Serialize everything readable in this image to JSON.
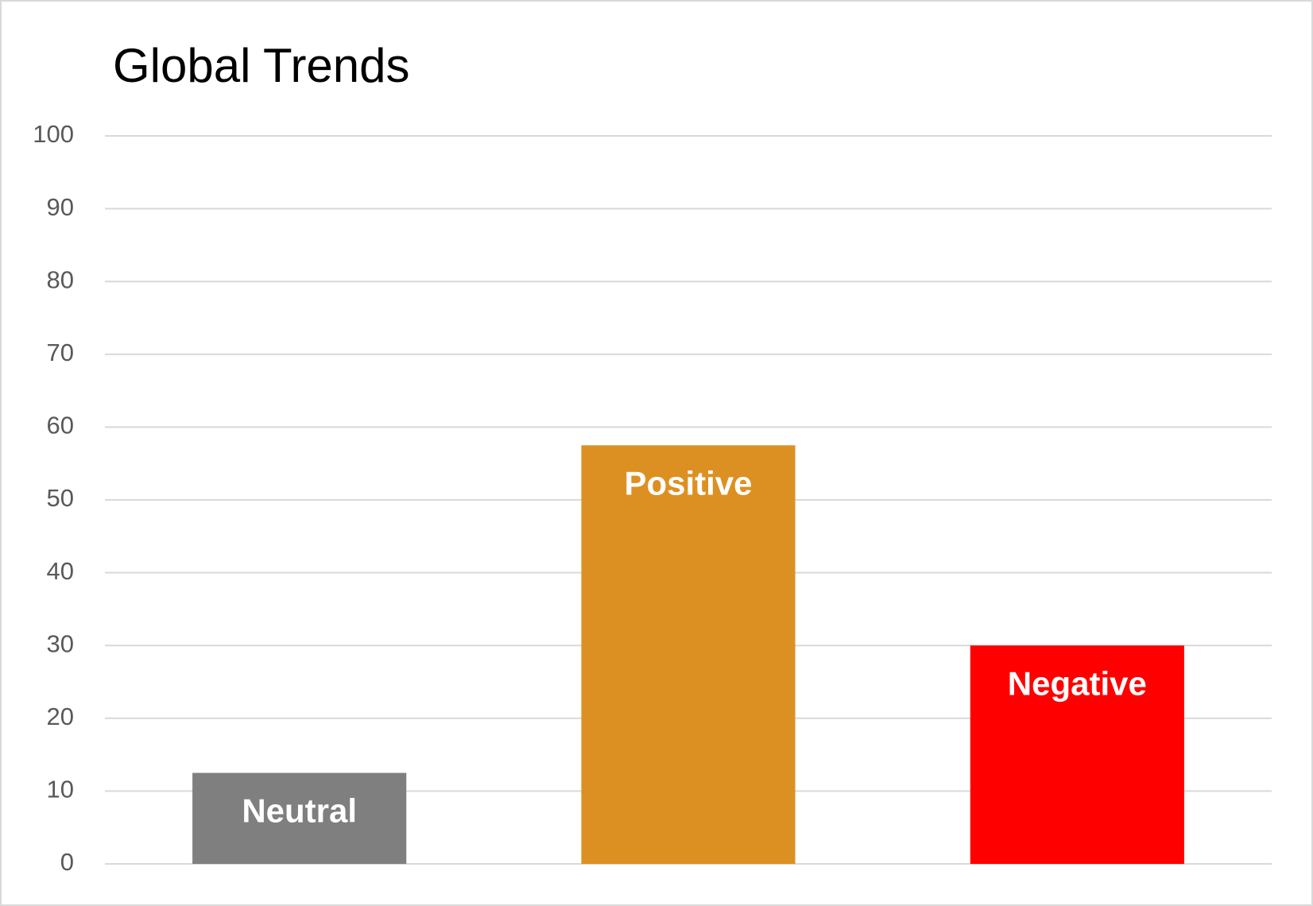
{
  "chart_data": {
    "type": "bar",
    "title": "Global Trends",
    "categories": [
      "Neutral",
      "Positive",
      "Negative"
    ],
    "values": [
      12.5,
      57.5,
      30
    ],
    "colors": [
      "#7f7f7f",
      "#dd9022",
      "#ff0000"
    ],
    "ylim": [
      0,
      100
    ],
    "yticks": [
      0,
      10,
      20,
      30,
      40,
      50,
      60,
      70,
      80,
      90,
      100
    ],
    "grid": true
  }
}
